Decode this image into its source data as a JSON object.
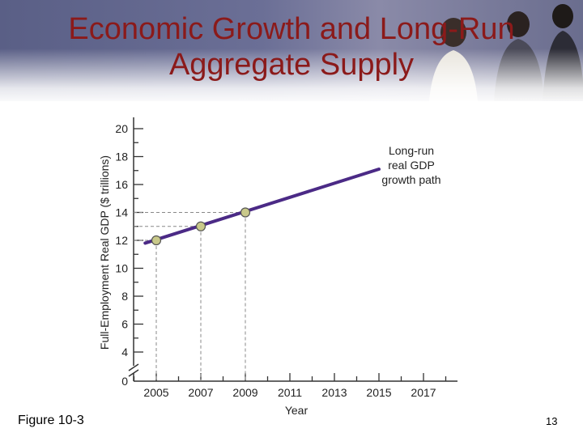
{
  "slide": {
    "title_line1": "Economic Growth and Long-Run",
    "title_line2": "Aggregate Supply",
    "figure_label": "Figure 10-3",
    "page_number": "13"
  },
  "colors": {
    "title": "#8b1a1a",
    "line": "#4b2a86",
    "point_fill": "#c9c98a",
    "banner": "#6b6f96"
  },
  "chart_data": {
    "type": "line",
    "ylabel": "Full-Employment Real GDP ($ trillions)",
    "xlabel": "Year",
    "y_ticks": [
      "0",
      "4",
      "6",
      "8",
      "10",
      "12",
      "14",
      "16",
      "18",
      "20"
    ],
    "x_ticks": [
      "2005",
      "2007",
      "2009",
      "2011",
      "2013",
      "2015",
      "2017"
    ],
    "ylim": [
      0,
      20
    ],
    "xlim": [
      2004,
      2018
    ],
    "y_axis_break": true,
    "series": [
      {
        "name": "Long-run real GDP growth path",
        "label_lines": [
          "Long-run",
          "real GDP",
          "growth path"
        ],
        "x": [
          2004.5,
          2015
        ],
        "y": [
          11.8,
          17.1
        ]
      }
    ],
    "points": [
      {
        "x": 2005,
        "y": 12
      },
      {
        "x": 2007,
        "y": 13
      },
      {
        "x": 2009,
        "y": 14
      }
    ],
    "grid": false
  }
}
